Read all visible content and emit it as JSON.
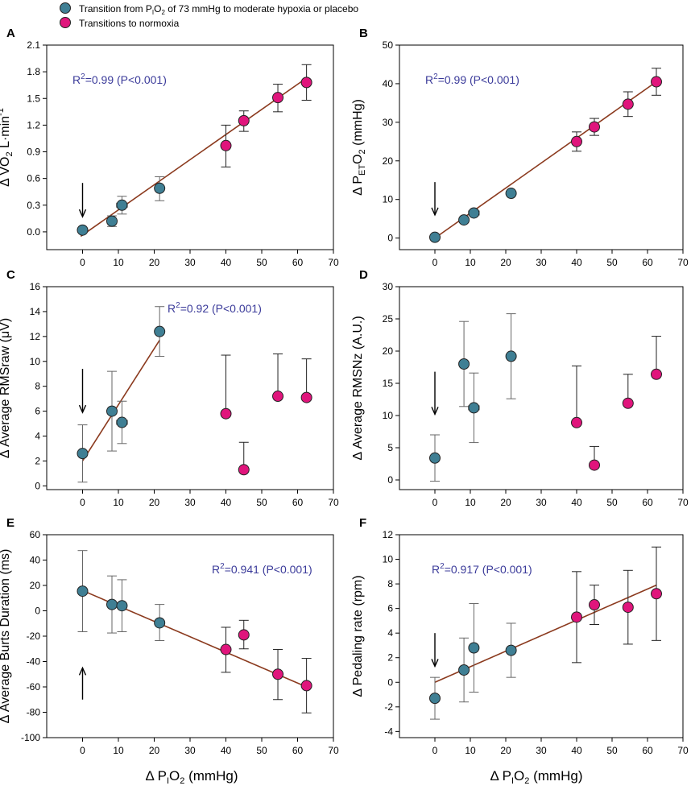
{
  "legend": {
    "entries": [
      {
        "pre": "Transition from P",
        "sub": "I",
        "mid": "O",
        "sub2": "2",
        "post": " of 73 mmHg to moderate hypoxia or placebo",
        "color": "#3f7f94"
      },
      {
        "pre": "Transitions to normoxia",
        "sub": "",
        "mid": "",
        "sub2": "",
        "post": "",
        "color": "#e0157c"
      }
    ]
  },
  "xlabel": {
    "pre": "Δ P",
    "sub": "I",
    "mid": "O",
    "sub2": "2",
    "post": " (mmHg)"
  },
  "colors": {
    "blue": "#3f7f94",
    "pink": "#e0157c",
    "line": "#8b3a1e",
    "text_r2": "#3b3b9a"
  },
  "chart_data": [
    {
      "panel": "A",
      "type": "scatter",
      "ylabel": {
        "parts": [
          [
            "Δ VO",
            ""
          ],
          [
            "2",
            "sub"
          ],
          [
            " L·min",
            ""
          ],
          [
            "-1",
            "sup"
          ]
        ]
      },
      "xlim": [
        -10,
        70
      ],
      "xticks": [
        0,
        10,
        20,
        30,
        40,
        50,
        60,
        70
      ],
      "ylim": [
        -0.2,
        2.1
      ],
      "yticks": [
        "0.0",
        "0.3",
        "0.6",
        "0.9",
        "1.2",
        "1.5",
        "1.8",
        "2.1"
      ],
      "annotation": {
        "pre": "R",
        "sup": "2",
        "post": "=0.99 (P<0.001)"
      },
      "fit": [
        [
          -0.5,
          -0.05
        ],
        [
          62.5,
          1.73
        ]
      ],
      "arrow": {
        "x": 0,
        "y_from": 0.55,
        "y_to": 0.17
      },
      "points": [
        {
          "x": 0,
          "y": 0.02,
          "group": "blue"
        },
        {
          "x": 8.2,
          "y": 0.12,
          "yerr": [
            0.06,
            0.06
          ],
          "group": "blue"
        },
        {
          "x": 11,
          "y": 0.3,
          "yerr": [
            0.1,
            0.1
          ],
          "xerr": 1.5,
          "group": "blue"
        },
        {
          "x": 21.5,
          "y": 0.49,
          "yerr": [
            0.14,
            0.13
          ],
          "group": "blue"
        },
        {
          "x": 40,
          "y": 0.97,
          "yerr": [
            0.24,
            0.23
          ],
          "group": "pink"
        },
        {
          "x": 45,
          "y": 1.25,
          "yerr": [
            0.12,
            0.11
          ],
          "group": "pink"
        },
        {
          "x": 54.5,
          "y": 1.51,
          "yerr": [
            0.16,
            0.15
          ],
          "group": "pink"
        },
        {
          "x": 62.5,
          "y": 1.68,
          "yerr": [
            0.2,
            0.2
          ],
          "group": "pink"
        }
      ]
    },
    {
      "panel": "B",
      "type": "scatter",
      "ylabel": {
        "parts": [
          [
            "Δ P",
            ""
          ],
          [
            "ET",
            "sub"
          ],
          [
            "O",
            ""
          ],
          [
            "2",
            "sub"
          ],
          [
            " (mmHg)",
            ""
          ]
        ]
      },
      "xlim": [
        -10,
        70
      ],
      "xticks": [
        0,
        10,
        20,
        30,
        40,
        50,
        60,
        70
      ],
      "ylim": [
        -3,
        50
      ],
      "yticks": [
        "0",
        "10",
        "20",
        "30",
        "40",
        "50"
      ],
      "annotation": {
        "pre": "R",
        "sup": "2",
        "post": "=0.99 (P<0.001)"
      },
      "fit": [
        [
          0,
          0
        ],
        [
          62.5,
          40.5
        ]
      ],
      "arrow": {
        "x": 0,
        "y_from": 14.5,
        "y_to": 6
      },
      "points": [
        {
          "x": 0,
          "y": 0.2,
          "group": "blue"
        },
        {
          "x": 8.2,
          "y": 4.7,
          "group": "blue"
        },
        {
          "x": 11,
          "y": 6.5,
          "xerr": 1.5,
          "group": "blue"
        },
        {
          "x": 21.5,
          "y": 11.6,
          "group": "blue"
        },
        {
          "x": 40,
          "y": 25.0,
          "yerr": [
            2.5,
            2.5
          ],
          "group": "pink"
        },
        {
          "x": 45,
          "y": 28.8,
          "yerr": [
            2.2,
            2.2
          ],
          "group": "pink"
        },
        {
          "x": 54.5,
          "y": 34.7,
          "yerr": [
            3.2,
            3.2
          ],
          "xerr": 1.2,
          "group": "pink"
        },
        {
          "x": 62.5,
          "y": 40.5,
          "yerr": [
            3.5,
            3.5
          ],
          "group": "pink"
        }
      ]
    },
    {
      "panel": "C",
      "type": "scatter",
      "ylabel": {
        "parts": [
          [
            "Δ Average RMSraw (μV)",
            ""
          ]
        ]
      },
      "xlim": [
        -10,
        70
      ],
      "xticks": [
        0,
        10,
        20,
        30,
        40,
        50,
        60,
        70
      ],
      "ylim": [
        -0.3,
        16
      ],
      "yticks": [
        "0",
        "2",
        "4",
        "6",
        "8",
        "10",
        "12",
        "14",
        "16"
      ],
      "annotation": {
        "pre": "R",
        "sup": "2",
        "post": "=0.92 (P<0.001)"
      },
      "fit": [
        [
          0,
          2.0
        ],
        [
          21.5,
          11.7
        ]
      ],
      "arrow": {
        "x": 0,
        "y_from": 9.4,
        "y_to": 5.9
      },
      "points": [
        {
          "x": 0,
          "y": 2.6,
          "yerr": [
            2.3,
            2.3
          ],
          "group": "blue"
        },
        {
          "x": 8.2,
          "y": 6.0,
          "yerr": [
            3.2,
            3.2
          ],
          "group": "blue"
        },
        {
          "x": 11,
          "y": 5.1,
          "yerr": [
            1.7,
            1.7
          ],
          "xerr": 1.5,
          "group": "blue"
        },
        {
          "x": 21.5,
          "y": 12.4,
          "yerr": [
            2.0,
            2.0
          ],
          "group": "blue"
        },
        {
          "x": 40,
          "y": 5.8,
          "yerr": [
            0,
            4.7
          ],
          "group": "pink"
        },
        {
          "x": 45,
          "y": 1.3,
          "yerr": [
            0,
            2.2
          ],
          "group": "pink"
        },
        {
          "x": 54.5,
          "y": 7.2,
          "yerr": [
            0,
            3.4
          ],
          "group": "pink"
        },
        {
          "x": 62.5,
          "y": 7.1,
          "yerr": [
            0,
            3.1
          ],
          "group": "pink"
        }
      ]
    },
    {
      "panel": "D",
      "type": "scatter",
      "ylabel": {
        "parts": [
          [
            "Δ Average RMSNz (A.U.)",
            ""
          ]
        ]
      },
      "xlim": [
        -10,
        70
      ],
      "xticks": [
        0,
        10,
        20,
        30,
        40,
        50,
        60,
        70
      ],
      "ylim": [
        -1.5,
        30
      ],
      "yticks": [
        "0",
        "5",
        "10",
        "15",
        "20",
        "25",
        "30"
      ],
      "annotation": null,
      "fit": null,
      "arrow": {
        "x": 0,
        "y_from": 16.8,
        "y_to": 10.2
      },
      "points": [
        {
          "x": 0,
          "y": 3.4,
          "yerr": [
            3.6,
            3.6
          ],
          "group": "blue"
        },
        {
          "x": 8.2,
          "y": 18.0,
          "yerr": [
            6.6,
            6.6
          ],
          "group": "blue"
        },
        {
          "x": 11,
          "y": 11.2,
          "yerr": [
            5.4,
            5.4
          ],
          "xerr": 1.5,
          "group": "blue"
        },
        {
          "x": 21.5,
          "y": 19.2,
          "yerr": [
            6.6,
            6.6
          ],
          "group": "blue"
        },
        {
          "x": 40,
          "y": 8.9,
          "yerr": [
            0,
            8.8
          ],
          "group": "pink"
        },
        {
          "x": 45,
          "y": 2.3,
          "yerr": [
            0,
            2.9
          ],
          "group": "pink"
        },
        {
          "x": 54.5,
          "y": 11.9,
          "yerr": [
            0,
            4.5
          ],
          "xerr": 1.2,
          "group": "pink"
        },
        {
          "x": 62.5,
          "y": 16.4,
          "yerr": [
            0,
            5.9
          ],
          "group": "pink"
        }
      ]
    },
    {
      "panel": "E",
      "type": "scatter",
      "ylabel": {
        "parts": [
          [
            "Δ Average Burts Duration (ms)",
            ""
          ]
        ]
      },
      "xlim": [
        -10,
        70
      ],
      "xticks": [
        0,
        10,
        20,
        30,
        40,
        50,
        60,
        70
      ],
      "ylim": [
        -100,
        60
      ],
      "yticks": [
        "-100",
        "-80",
        "-60",
        "-40",
        "-20",
        "0",
        "20",
        "40",
        "60"
      ],
      "annotation": {
        "pre": "R",
        "sup": "2",
        "post": "=0.941 (P<0.001)"
      },
      "fit": [
        [
          0,
          16
        ],
        [
          62.5,
          -60
        ]
      ],
      "arrow": {
        "x": 0,
        "y_from": -70,
        "y_to": -45
      },
      "points": [
        {
          "x": 0,
          "y": 15.5,
          "yerr": [
            32,
            32
          ],
          "group": "blue"
        },
        {
          "x": 8.2,
          "y": 5.0,
          "yerr": [
            22.5,
            22.5
          ],
          "group": "blue"
        },
        {
          "x": 11,
          "y": 4.0,
          "yerr": [
            20.5,
            20.5
          ],
          "group": "blue"
        },
        {
          "x": 21.5,
          "y": -9.5,
          "yerr": [
            14,
            14.5
          ],
          "group": "blue"
        },
        {
          "x": 40,
          "y": -30.5,
          "yerr": [
            18,
            17.5
          ],
          "group": "pink"
        },
        {
          "x": 45,
          "y": -19.0,
          "yerr": [
            11,
            11.5
          ],
          "group": "pink"
        },
        {
          "x": 54.5,
          "y": -50.0,
          "yerr": [
            20,
            19.5
          ],
          "group": "pink"
        },
        {
          "x": 62.5,
          "y": -59.0,
          "yerr": [
            21.5,
            21.5
          ],
          "group": "pink"
        }
      ]
    },
    {
      "panel": "F",
      "type": "scatter",
      "ylabel": {
        "parts": [
          [
            "Δ Pedaling rate (rpm)",
            ""
          ]
        ]
      },
      "xlim": [
        -10,
        70
      ],
      "xticks": [
        0,
        10,
        20,
        30,
        40,
        50,
        60,
        70
      ],
      "ylim": [
        -4.5,
        12
      ],
      "yticks": [
        "-4",
        "-2",
        "0",
        "2",
        "4",
        "6",
        "8",
        "10",
        "12"
      ],
      "annotation": {
        "pre": "R",
        "sup": "2",
        "post": "=0.917 (P<0.001)"
      },
      "fit": [
        [
          0,
          0
        ],
        [
          62.5,
          7.9
        ]
      ],
      "arrow": {
        "x": 0,
        "y_from": 4.0,
        "y_to": 1.3
      },
      "points": [
        {
          "x": 0,
          "y": -1.3,
          "yerr": [
            1.7,
            1.7
          ],
          "group": "blue"
        },
        {
          "x": 8.2,
          "y": 1.0,
          "yerr": [
            2.6,
            2.6
          ],
          "group": "blue"
        },
        {
          "x": 11,
          "y": 2.8,
          "yerr": [
            3.6,
            3.6
          ],
          "group": "blue"
        },
        {
          "x": 21.5,
          "y": 2.6,
          "yerr": [
            2.2,
            2.2
          ],
          "group": "blue"
        },
        {
          "x": 40,
          "y": 5.3,
          "yerr": [
            3.7,
            3.7
          ],
          "group": "pink"
        },
        {
          "x": 45,
          "y": 6.3,
          "yerr": [
            1.6,
            1.6
          ],
          "group": "pink"
        },
        {
          "x": 54.5,
          "y": 6.1,
          "yerr": [
            3.0,
            3.0
          ],
          "group": "pink"
        },
        {
          "x": 62.5,
          "y": 7.2,
          "yerr": [
            3.8,
            3.8
          ],
          "group": "pink"
        }
      ]
    }
  ]
}
